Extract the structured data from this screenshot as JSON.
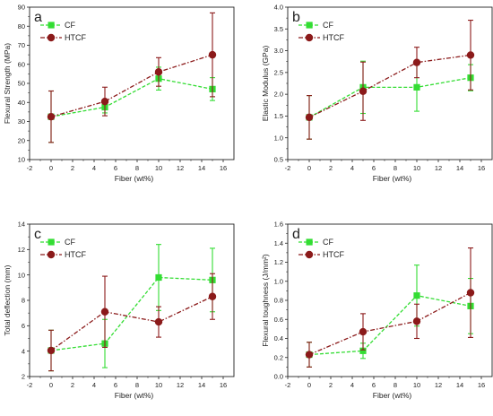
{
  "colors": {
    "cf": "#33dd33",
    "htcf": "#8b1a1a",
    "axis": "#222222"
  },
  "chart_data": [
    {
      "type": "line",
      "panel": "a",
      "xlabel": "Fiber (wt%)",
      "ylabel": "Flexural Strength (MPa)",
      "xlim": [
        -2,
        17
      ],
      "ylim": [
        10,
        90
      ],
      "xticks": [
        -2,
        0,
        2,
        4,
        6,
        8,
        10,
        12,
        14,
        16
      ],
      "yticks": [
        10,
        20,
        30,
        40,
        50,
        60,
        70,
        80,
        90
      ],
      "legend_position": "top-left",
      "series": [
        {
          "name": "CF",
          "x": [
            0,
            5,
            10,
            15
          ],
          "y": [
            32.5,
            37.5,
            52.5,
            47
          ],
          "err": [
            13.5,
            3,
            6,
            6
          ]
        },
        {
          "name": "HTCF",
          "x": [
            0,
            5,
            10,
            15
          ],
          "y": [
            32.5,
            40.5,
            56,
            65
          ],
          "err": [
            13.5,
            7.5,
            7.5,
            22
          ]
        }
      ]
    },
    {
      "type": "line",
      "panel": "b",
      "xlabel": "Fiber (wt%)",
      "ylabel": "Elastic Modulus (GPa)",
      "xlim": [
        -2,
        17
      ],
      "ylim": [
        0.5,
        4.0
      ],
      "xticks": [
        -2,
        0,
        2,
        4,
        6,
        8,
        10,
        12,
        14,
        16
      ],
      "yticks": [
        0.5,
        1.0,
        1.5,
        2.0,
        2.5,
        3.0,
        3.5,
        4.0
      ],
      "legend_position": "top-left",
      "series": [
        {
          "name": "CF",
          "x": [
            0,
            5,
            10,
            15
          ],
          "y": [
            1.47,
            2.16,
            2.16,
            2.38
          ],
          "err": [
            0.5,
            0.6,
            0.55,
            0.3
          ]
        },
        {
          "name": "HTCF",
          "x": [
            0,
            5,
            10,
            15
          ],
          "y": [
            1.47,
            2.07,
            2.73,
            2.9
          ],
          "err": [
            0.5,
            0.67,
            0.35,
            0.8
          ]
        }
      ]
    },
    {
      "type": "line",
      "panel": "c",
      "xlabel": "Fiber (wt%)",
      "ylabel": "Total deflection (mm)",
      "xlim": [
        -2,
        17
      ],
      "ylim": [
        2,
        14
      ],
      "xticks": [
        -2,
        0,
        2,
        4,
        6,
        8,
        10,
        12,
        14,
        16
      ],
      "yticks": [
        2,
        4,
        6,
        8,
        10,
        12,
        14
      ],
      "legend_position": "top-left",
      "series": [
        {
          "name": "CF",
          "x": [
            0,
            5,
            10,
            15
          ],
          "y": [
            4.05,
            4.6,
            9.8,
            9.6
          ],
          "err": [
            1.6,
            1.9,
            2.6,
            2.5
          ]
        },
        {
          "name": "HTCF",
          "x": [
            0,
            5,
            10,
            15
          ],
          "y": [
            4.05,
            7.1,
            6.3,
            8.3
          ],
          "err": [
            1.6,
            2.8,
            1.2,
            1.8
          ]
        }
      ]
    },
    {
      "type": "line",
      "panel": "d",
      "xlabel": "Fiber (wt%)",
      "ylabel": "Flexural toughness (J/mm²)",
      "xlim": [
        -2,
        17
      ],
      "ylim": [
        0.0,
        1.6
      ],
      "xticks": [
        -2,
        0,
        2,
        4,
        6,
        8,
        10,
        12,
        14,
        16
      ],
      "yticks": [
        0.0,
        0.2,
        0.4,
        0.6,
        0.8,
        1.0,
        1.2,
        1.4,
        1.6
      ],
      "legend_position": "top-left",
      "series": [
        {
          "name": "CF",
          "x": [
            0,
            5,
            10,
            15
          ],
          "y": [
            0.23,
            0.27,
            0.85,
            0.74
          ],
          "err": [
            0.13,
            0.08,
            0.32,
            0.29
          ]
        },
        {
          "name": "HTCF",
          "x": [
            0,
            5,
            10,
            15
          ],
          "y": [
            0.23,
            0.47,
            0.58,
            0.88
          ],
          "err": [
            0.13,
            0.19,
            0.18,
            0.47
          ]
        }
      ]
    }
  ]
}
